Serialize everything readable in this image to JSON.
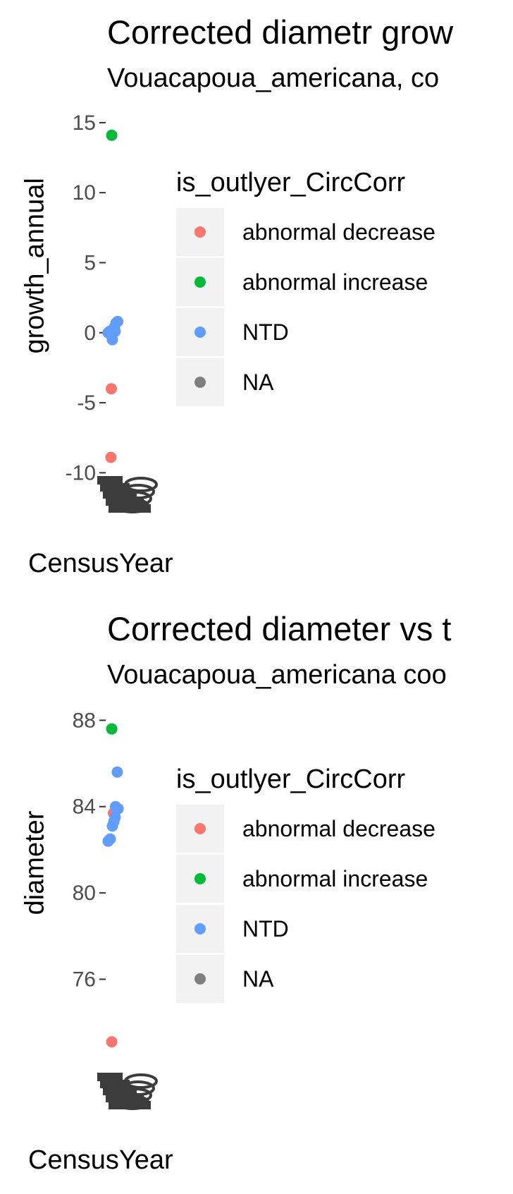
{
  "chart_data": [
    {
      "type": "scatter",
      "title": "Corrected diametr grow",
      "subtitle": "Vouacapoua_americana, co",
      "xlabel": "CensusYear",
      "ylabel": "growth_annual",
      "yticks": [
        "15",
        "10",
        "5",
        "0",
        "-5",
        "-10"
      ],
      "ytick_values": [
        15,
        10,
        5,
        0,
        -5,
        -10
      ],
      "ylim": [
        -12.5,
        15.7
      ],
      "legend": {
        "title": "is_outlyer_CircCorr",
        "position": "right",
        "items": [
          {
            "label": "abnormal decrease",
            "color": "#F8766D"
          },
          {
            "label": "abnormal increase",
            "color": "#00BA38"
          },
          {
            "label": "NTD",
            "color": "#619CFF"
          },
          {
            "label": "NA",
            "color": "#7F7F7F"
          }
        ]
      },
      "series": [
        {
          "name": "abnormal decrease",
          "color": "#F8766D",
          "points": [
            [
              0.2,
              -4.0
            ],
            [
              0.18,
              -8.9
            ]
          ]
        },
        {
          "name": "abnormal increase",
          "color": "#00BA38",
          "points": [
            [
              0.22,
              14.1
            ]
          ]
        },
        {
          "name": "NTD",
          "color": "#619CFF",
          "points": [
            [
              0.05,
              0.0
            ],
            [
              0.12,
              0.1
            ],
            [
              0.2,
              -0.2
            ],
            [
              0.28,
              0.2
            ],
            [
              0.35,
              0.4
            ],
            [
              0.42,
              0.7
            ],
            [
              0.5,
              0.8
            ],
            [
              0.25,
              -0.5
            ],
            [
              0.38,
              0.1
            ],
            [
              0.15,
              0.05
            ]
          ]
        }
      ]
    },
    {
      "type": "scatter",
      "title": "Corrected diameter vs t",
      "subtitle": "Vouacapoua_americana coo",
      "xlabel": "CensusYear",
      "ylabel": "diameter",
      "yticks": [
        "88",
        "84",
        "80",
        "76"
      ],
      "ytick_values": [
        88,
        84,
        80,
        76
      ],
      "ylim": [
        70.2,
        88.5
      ],
      "legend": {
        "title": "is_outlyer_CircCorr",
        "position": "right",
        "items": [
          {
            "label": "abnormal decrease",
            "color": "#F8766D"
          },
          {
            "label": "abnormal increase",
            "color": "#00BA38"
          },
          {
            "label": "NTD",
            "color": "#619CFF"
          },
          {
            "label": "NA",
            "color": "#7F7F7F"
          }
        ]
      },
      "series": [
        {
          "name": "abnormal decrease",
          "color": "#F8766D",
          "points": [
            [
              0.3,
              83.7
            ],
            [
              0.22,
              73.1
            ]
          ]
        },
        {
          "name": "abnormal increase",
          "color": "#00BA38",
          "points": [
            [
              0.22,
              87.6
            ]
          ]
        },
        {
          "name": "NTD",
          "color": "#619CFF",
          "points": [
            [
              0.05,
              82.4
            ],
            [
              0.15,
              82.5
            ],
            [
              0.25,
              83.1
            ],
            [
              0.32,
              83.3
            ],
            [
              0.38,
              83.5
            ],
            [
              0.45,
              83.9
            ],
            [
              0.52,
              83.9
            ],
            [
              0.48,
              85.6
            ],
            [
              0.4,
              84.0
            ]
          ]
        }
      ]
    }
  ]
}
